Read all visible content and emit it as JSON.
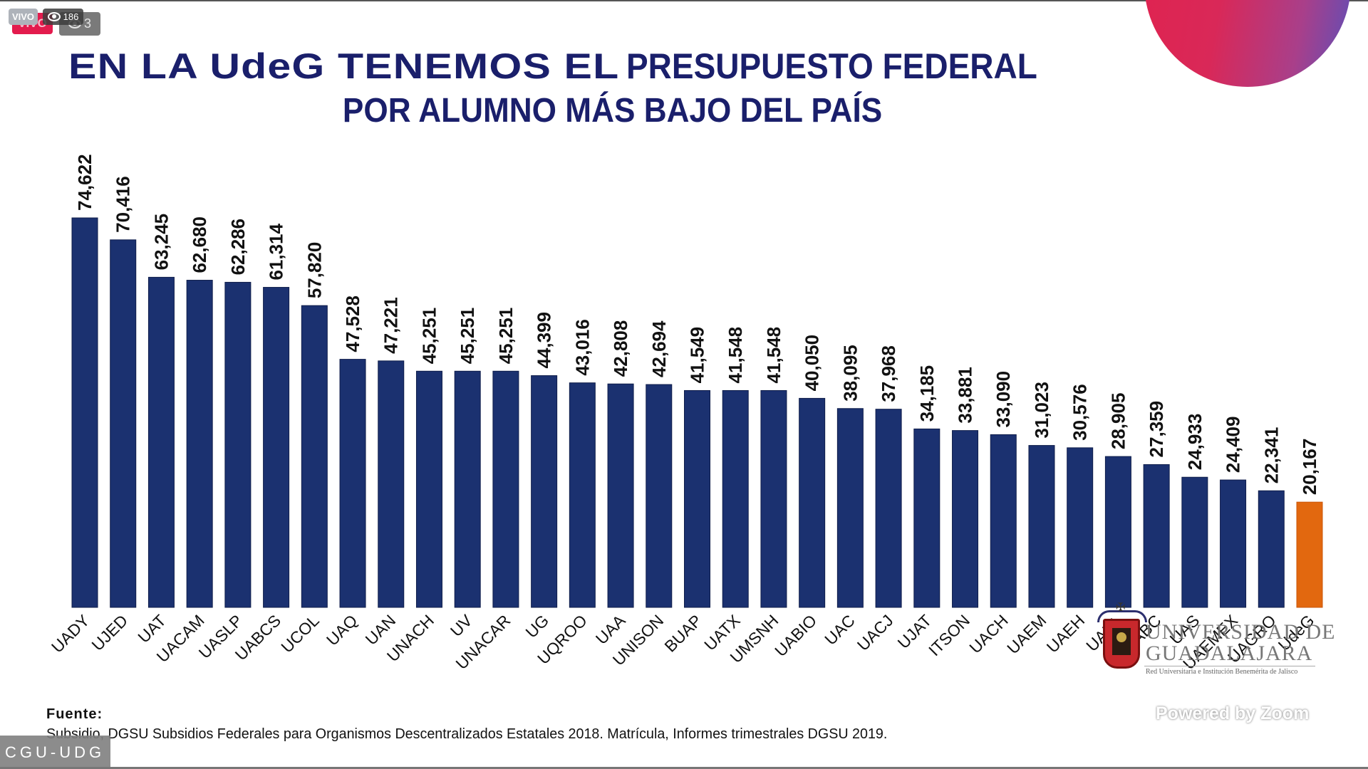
{
  "overlay": {
    "live_badge_front": "VIVO",
    "viewers_front": "186",
    "live_badge_back": "VIVO",
    "viewers_back": "3",
    "channel_label": "CGU-UDG",
    "powered_by": "Powered by Zoom"
  },
  "slide": {
    "title_line1_bold": "EN LA UdeG TENEMOS EL",
    "title_line1_rest": "PRESUPUESTO FEDERAL",
    "title_line2": "POR ALUMNO MÁS BAJO DEL PAÍS",
    "source_label": "Fuente:",
    "source_text": "Subsidio, DGSU Subsidios Federales para Organismos Descentralizados Estatales 2018. Matrícula, Informes trimestrales DGSU 2019.",
    "logo": {
      "line1": "UNIVERSIDAD DE",
      "line2": "GUADALAJARA",
      "subtitle": "Red Universitaria e Institución Benemérita de Jalisco"
    }
  },
  "colors": {
    "bar": "#1b3170",
    "highlight_bar": "#e2680f",
    "title": "#1a1f6b"
  },
  "chart_data": {
    "type": "bar",
    "title": "EN LA UdeG TENEMOS EL PRESUPUESTO FEDERAL POR ALUMNO MÁS BAJO DEL PAÍS",
    "xlabel": "",
    "ylabel": "",
    "ylim": [
      0,
      74622
    ],
    "grid": false,
    "legend": "none",
    "highlight": "UdeG",
    "categories": [
      "UADY",
      "UJED",
      "UAT",
      "UACAM",
      "UASLP",
      "UABCS",
      "UCOL",
      "UAQ",
      "UAN",
      "UNACH",
      "UV",
      "UNACAR",
      "UG",
      "UQROO",
      "UAA",
      "UNISON",
      "BUAP",
      "UATX",
      "UMSNH",
      "UABIO",
      "UAC",
      "UACJ",
      "UJAT",
      "ITSON",
      "UACH",
      "UAEM",
      "UAEH",
      "UANL",
      "UABC",
      "UAS",
      "UAEMEX",
      "UAGRO",
      "UdeG"
    ],
    "values": [
      74622,
      70416,
      63245,
      62680,
      62286,
      61314,
      57820,
      47528,
      47221,
      45251,
      45251,
      45251,
      44399,
      43016,
      42808,
      42694,
      41549,
      41548,
      41548,
      40050,
      38095,
      37968,
      34185,
      33881,
      33090,
      31023,
      30576,
      28905,
      27359,
      24933,
      24409,
      22341,
      20167
    ],
    "value_labels": [
      "74,622",
      "70,416",
      "63,245",
      "62,680",
      "62,286",
      "61,314",
      "57,820",
      "47,528",
      "47,221",
      "45,251",
      "45,251",
      "45,251",
      "44,399",
      "43,016",
      "42,808",
      "42,694",
      "41,549",
      "41,548",
      "41,548",
      "40,050",
      "38,095",
      "37,968",
      "34,185",
      "33,881",
      "33,090",
      "31,023",
      "30,576",
      "28,905",
      "27,359",
      "24,933",
      "24,409",
      "22,341",
      "20,167"
    ]
  }
}
